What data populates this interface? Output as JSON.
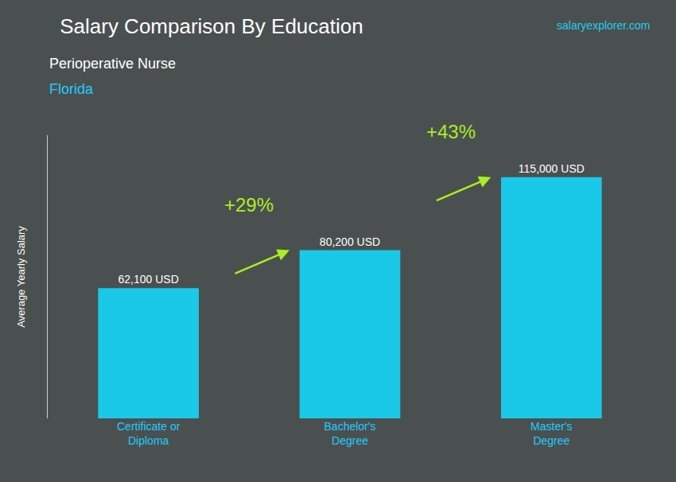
{
  "chart_data": {
    "type": "bar",
    "title": "Salary Comparison By Education",
    "subtitle": [
      "Perioperative Nurse",
      "Florida"
    ],
    "source": "salaryexplorer.com",
    "ylabel": "Average Yearly Salary",
    "categories": [
      "Certificate or\nDiploma",
      "Bachelor's\nDegree",
      "Master's\nDegree"
    ],
    "values": [
      62100,
      80200,
      115000
    ],
    "value_labels": [
      "62,100 USD",
      "80,200 USD",
      "115,000 USD"
    ],
    "data_labels": true,
    "color": "#1ac8e8",
    "annotations": [
      {
        "text": "+29%",
        "color": "#aaee22"
      },
      {
        "text": "+43%",
        "color": "#aaee22"
      }
    ],
    "ylim": [
      0,
      135000
    ],
    "tick_labels": "x",
    "grid": false
  }
}
